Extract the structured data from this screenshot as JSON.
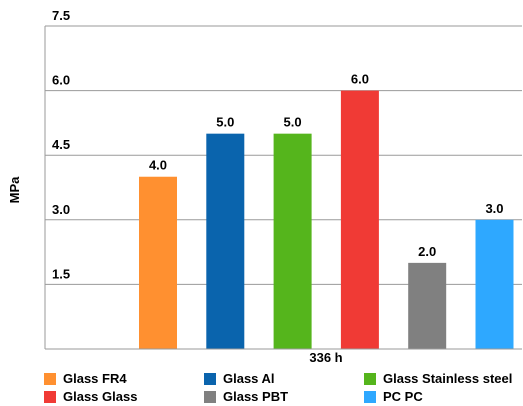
{
  "chart_data": {
    "type": "bar",
    "title": "",
    "ylabel": "MPa",
    "xlabel": "336 h",
    "ylim": [
      0,
      7.5
    ],
    "yticks": [
      "7.5",
      "6.0",
      "4.5",
      "3.0",
      "1.5"
    ],
    "ytick_values": [
      7.5,
      6.0,
      4.5,
      3.0,
      1.5
    ],
    "grid": true,
    "legend_position": "bottom",
    "series": [
      {
        "name": "Glass FR4",
        "value": 4.0,
        "label": "4.0",
        "color": "#ff9030"
      },
      {
        "name": "Glass Al",
        "value": 5.0,
        "label": "5.0",
        "color": "#0a64ad"
      },
      {
        "name": "Glass Stainless steel",
        "value": 5.0,
        "label": "5.0",
        "color": "#55b51c"
      },
      {
        "name": "Glass Glass",
        "value": 6.0,
        "label": "6.0",
        "color": "#f03a35"
      },
      {
        "name": "Glass PBT",
        "value": 2.0,
        "label": "2.0",
        "color": "#808080"
      },
      {
        "name": "PC PC",
        "value": 3.0,
        "label": "3.0",
        "color": "#2ea8ff"
      }
    ]
  }
}
